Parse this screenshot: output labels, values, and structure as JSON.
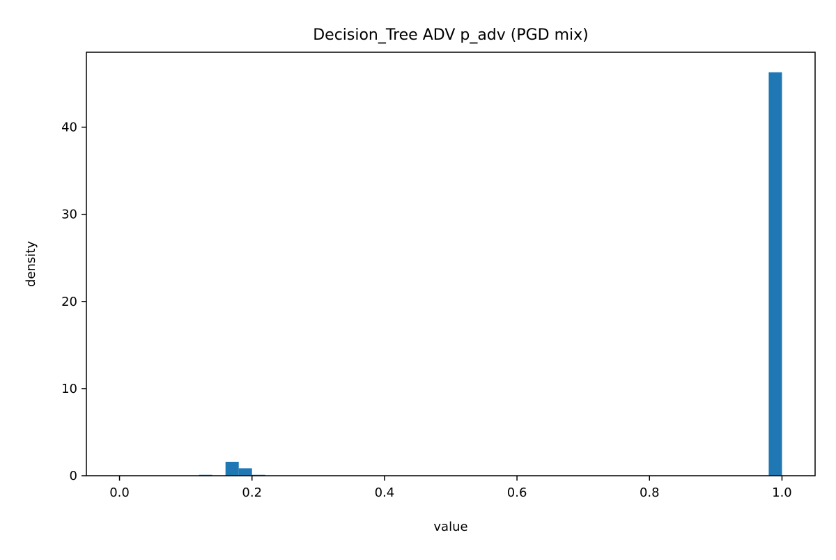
{
  "chart_data": {
    "type": "bar",
    "title": "Decision_Tree ADV p_adv (PGD mix)",
    "xlabel": "value",
    "ylabel": "density",
    "xlim": [
      -0.05,
      1.05
    ],
    "ylim": [
      0,
      48.6
    ],
    "x_ticks": [
      0.0,
      0.2,
      0.4,
      0.6,
      0.8,
      1.0
    ],
    "x_tick_labels": [
      "0.0",
      "0.2",
      "0.4",
      "0.6",
      "0.8",
      "1.0"
    ],
    "y_ticks": [
      0,
      10,
      20,
      30,
      40
    ],
    "y_tick_labels": [
      "0",
      "10",
      "20",
      "30",
      "40"
    ],
    "bin_width": 0.02,
    "bins": [
      {
        "x0": 0.12,
        "x1": 0.14,
        "value": 0.1
      },
      {
        "x0": 0.16,
        "x1": 0.18,
        "value": 1.6
      },
      {
        "x0": 0.18,
        "x1": 0.2,
        "value": 0.85
      },
      {
        "x0": 0.2,
        "x1": 0.22,
        "value": 0.1
      },
      {
        "x0": 0.98,
        "x1": 1.0,
        "value": 46.3
      }
    ],
    "bar_color": "#1f77b4",
    "grid": false,
    "legend": "none"
  }
}
